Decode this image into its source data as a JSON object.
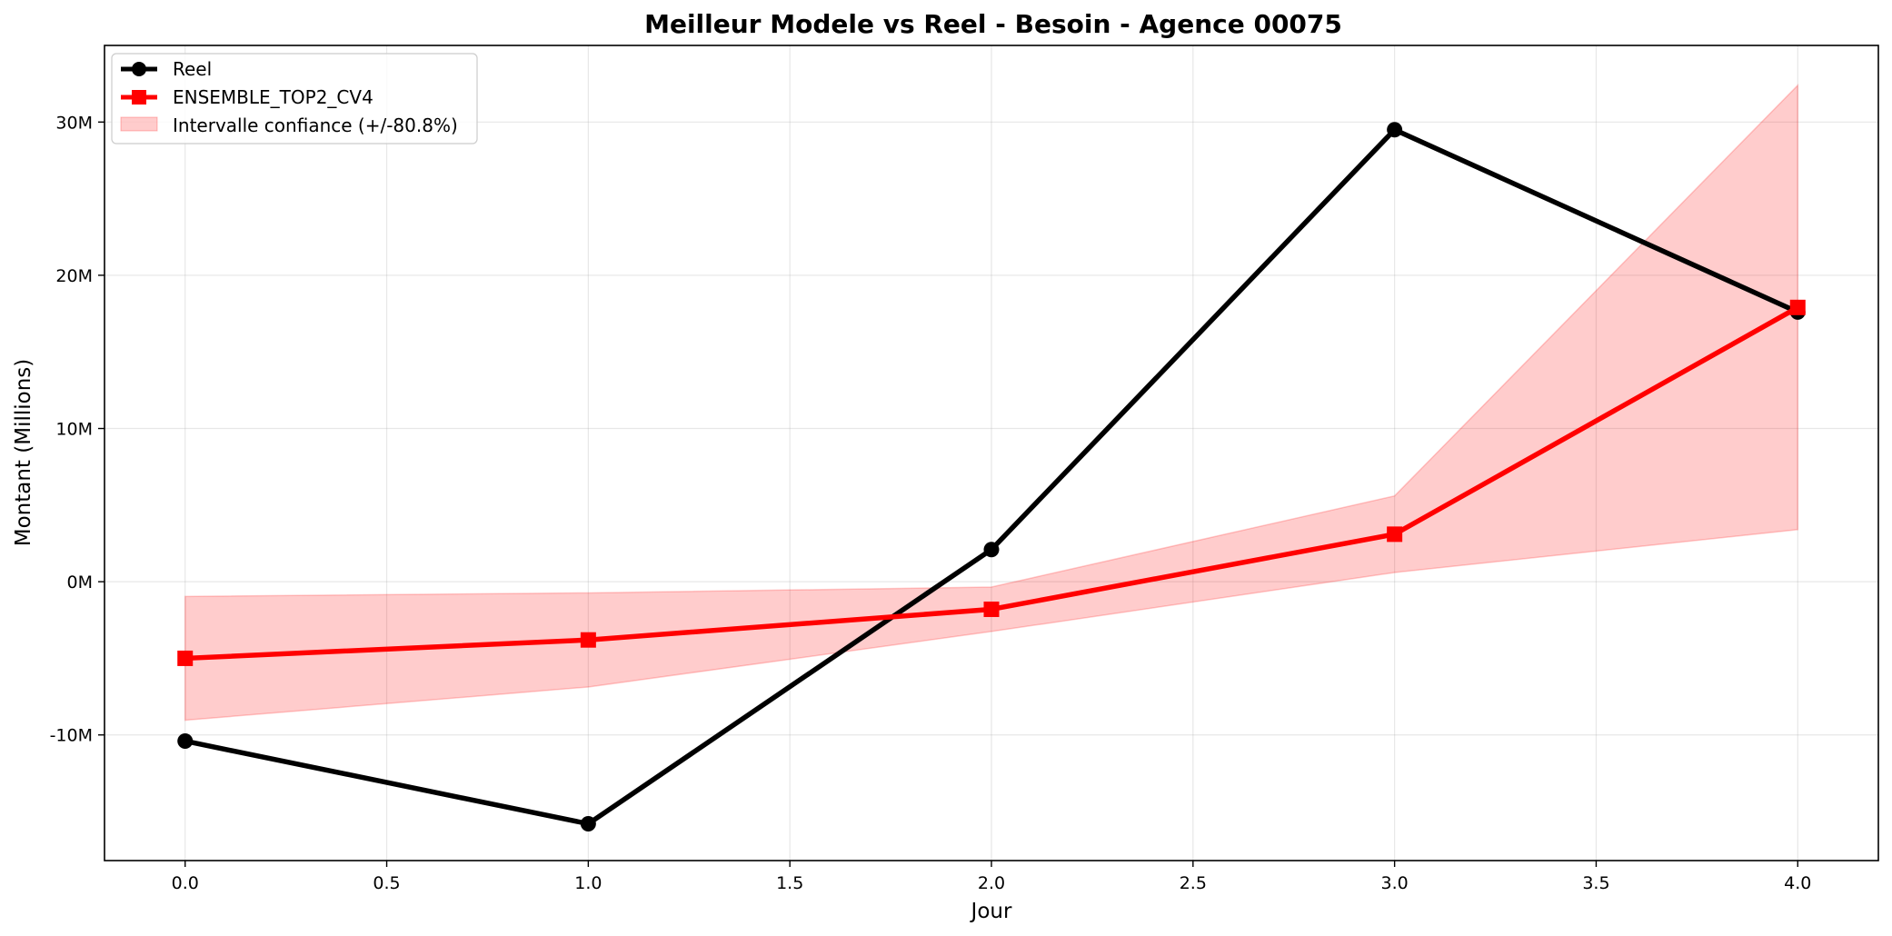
{
  "chart_data": {
    "type": "line",
    "title": "Meilleur Modele vs Reel - Besoin - Agence 00075",
    "xlabel": "Jour",
    "ylabel": "Montant (Millions)",
    "x": [
      0.0,
      1.0,
      2.0,
      3.0,
      4.0
    ],
    "xlim": [
      -0.2,
      4.2
    ],
    "ylim": [
      -18.2,
      35.0
    ],
    "xticks": [
      0.0,
      0.5,
      1.0,
      1.5,
      2.0,
      2.5,
      3.0,
      3.5,
      4.0
    ],
    "xtick_labels": [
      "0.0",
      "0.5",
      "1.0",
      "1.5",
      "2.0",
      "2.5",
      "3.0",
      "3.5",
      "4.0"
    ],
    "yticks": [
      -10,
      0,
      10,
      20,
      30
    ],
    "ytick_labels": [
      "-10M",
      "0M",
      "10M",
      "20M",
      "30M"
    ],
    "grid": true,
    "legend_position": "top-left",
    "series": [
      {
        "name": "Reel",
        "color": "#000000",
        "marker": "circle",
        "values": [
          -10.4,
          -15.8,
          2.1,
          29.5,
          17.6
        ]
      },
      {
        "name": "ENSEMBLE_TOP2_CV4",
        "color": "#ff0000",
        "marker": "square",
        "values": [
          -5.0,
          -3.8,
          -1.8,
          3.1,
          17.9
        ]
      }
    ],
    "band": {
      "name": "Intervalle confiance (+/-80.8%)",
      "color": "#ff0000",
      "upper": [
        -0.96,
        -0.73,
        -0.35,
        5.6,
        32.4
      ],
      "lower": [
        -9.04,
        -6.87,
        -3.25,
        0.6,
        3.4
      ]
    }
  }
}
